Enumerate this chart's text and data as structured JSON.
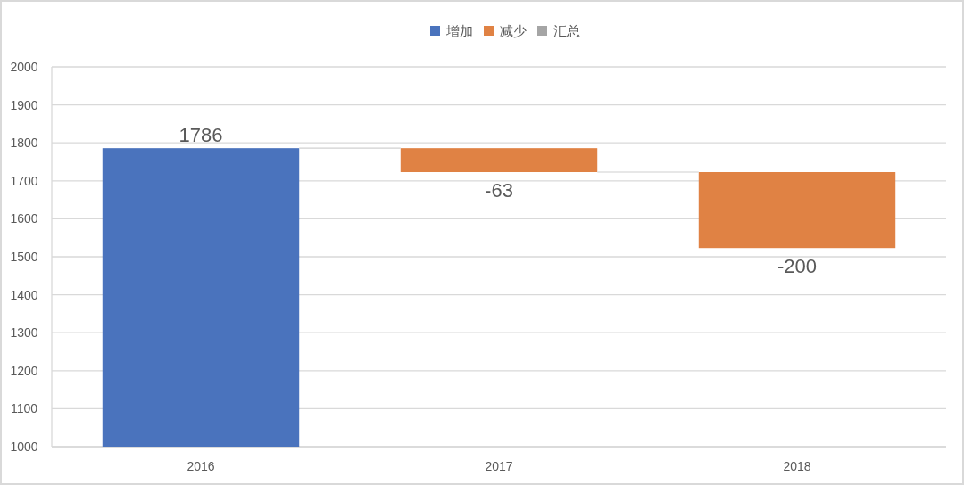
{
  "chart_data": {
    "type": "bar",
    "categories": [
      "2016",
      "2017",
      "2018"
    ],
    "series": [
      {
        "name": "增加",
        "color": "#4a73bd",
        "values": [
          1786,
          null,
          null
        ]
      },
      {
        "name": "减少",
        "color": "#e08244",
        "values": [
          null,
          -63,
          -200
        ],
        "base": [
          null,
          1786,
          1723
        ]
      },
      {
        "name": "汇总",
        "color": "#a5a5a5",
        "values": [
          null,
          null,
          null
        ]
      }
    ],
    "ylim": [
      1000,
      2000
    ],
    "yticks": [
      1000,
      1100,
      1200,
      1300,
      1400,
      1500,
      1600,
      1700,
      1800,
      1900,
      2000
    ],
    "grid": "y",
    "legend": "top",
    "data_labels": true
  }
}
